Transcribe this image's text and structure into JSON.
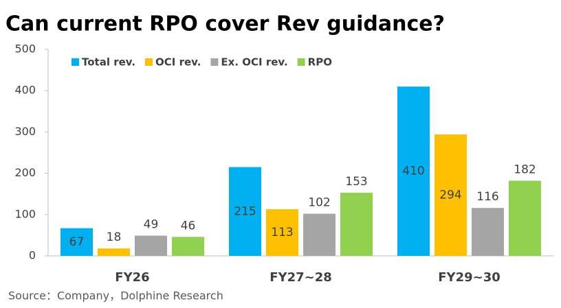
{
  "chart_data": {
    "type": "bar",
    "title": "Can current RPO cover Rev guidance?",
    "source": "Source：Company，Dolphine Research",
    "categories": [
      "FY26",
      "FY27~28",
      "FY29~30"
    ],
    "series": [
      {
        "name": "Total rev.",
        "color": "#00b0f0",
        "values": [
          67,
          215,
          410
        ]
      },
      {
        "name": "OCI rev.",
        "color": "#ffc000",
        "values": [
          18,
          113,
          294
        ]
      },
      {
        "name": "Ex. OCI rev.",
        "color": "#a5a5a5",
        "values": [
          49,
          102,
          116
        ]
      },
      {
        "name": "RPO",
        "color": "#92d050",
        "values": [
          46,
          153,
          182
        ]
      }
    ],
    "ylim": [
      0,
      500
    ],
    "yticks": [
      0,
      100,
      200,
      300,
      400,
      500
    ],
    "grid": false
  }
}
